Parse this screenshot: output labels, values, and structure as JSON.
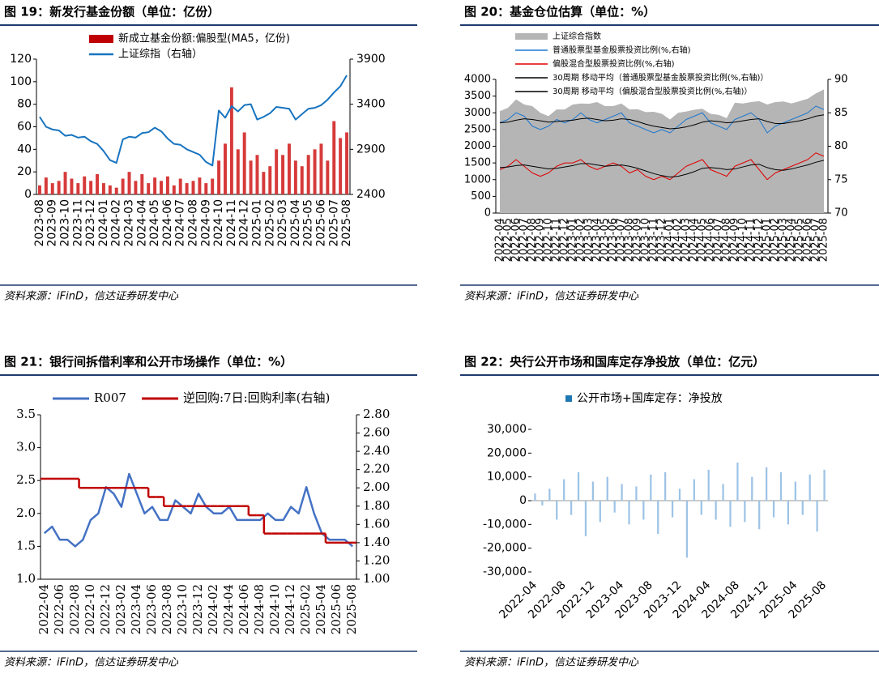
{
  "chart_data": [
    {
      "type": "combo",
      "title": "图 19：新发行基金份额（单位：亿份）",
      "source": "资料来源：iFinD，信达证券研发中心",
      "categories": [
        "2023-08",
        null,
        "2023-09",
        null,
        "2023-10",
        null,
        "2023-11",
        null,
        "2023-12",
        null,
        "2024-01",
        null,
        "2024-02",
        null,
        "2024-03",
        null,
        "2024-04",
        null,
        "2024-05",
        null,
        "2024-06",
        null,
        "2024-07",
        null,
        "2024-08",
        null,
        "2024-09",
        null,
        "2024-10",
        null,
        "2024-11",
        null,
        "2024-12",
        null,
        "2025-01",
        null,
        "2025-02",
        null,
        "2025-03",
        null,
        "2025-04",
        null,
        "2025-05",
        null,
        "2025-06",
        null,
        "2025-07",
        null,
        "2025-08"
      ],
      "series": [
        {
          "name": "新成立基金份额:偏股型(MA5，亿份)",
          "type": "bar",
          "color": "#d63a3a",
          "values": [
            8,
            15,
            10,
            12,
            20,
            14,
            10,
            16,
            12,
            18,
            10,
            8,
            6,
            14,
            20,
            12,
            18,
            10,
            15,
            12,
            16,
            8,
            14,
            10,
            12,
            15,
            10,
            14,
            30,
            45,
            95,
            40,
            55,
            30,
            35,
            20,
            25,
            40,
            35,
            45,
            30,
            25,
            35,
            40,
            45,
            30,
            65,
            50,
            55
          ]
        },
        {
          "name": "上证综指（右轴）",
          "type": "line",
          "color": "#1874c0",
          "axis": "y2",
          "values": [
            3260,
            3150,
            3120,
            3110,
            3050,
            3060,
            3030,
            3040,
            2990,
            2960,
            2880,
            2780,
            2750,
            3010,
            3040,
            3030,
            3080,
            3090,
            3140,
            3100,
            3020,
            2960,
            2950,
            2900,
            2870,
            2840,
            2760,
            2720,
            3330,
            3250,
            3380,
            3320,
            3390,
            3400,
            3230,
            3260,
            3300,
            3370,
            3360,
            3350,
            3230,
            3290,
            3350,
            3360,
            3390,
            3450,
            3530,
            3600,
            3720
          ]
        }
      ],
      "ylim": [
        0,
        120
      ],
      "yticks": [
        0,
        20,
        40,
        60,
        80,
        100,
        120
      ],
      "y2lim": [
        2400,
        3900
      ],
      "y2ticks": [
        2400,
        2900,
        3400,
        3900
      ]
    },
    {
      "type": "combo",
      "title": "图 20：基金仓位估算（单位：%）",
      "source": "资料来源：iFinD，信达证券研发中心",
      "categories": [
        "2022-04",
        "2022-05",
        "2022-06",
        "2022-07",
        "2022-08",
        "2022-09",
        "2022-10",
        "2022-11",
        "2022-12",
        "2023-01",
        "2023-02",
        "2023-03",
        "2023-04",
        "2023-05",
        "2023-06",
        "2023-07",
        "2023-08",
        "2023-09",
        "2023-10",
        "2023-11",
        "2023-12",
        "2024-01",
        "2024-02",
        "2024-03",
        "2024-04",
        "2024-05",
        "2024-06",
        "2024-07",
        "2024-08",
        "2024-09",
        "2024-10",
        "2024-11",
        "2024-12",
        "2025-01",
        "2025-02",
        "2025-03",
        "2025-04",
        "2025-05",
        "2025-06",
        "2025-07",
        "2025-08"
      ],
      "series": [
        {
          "name": "上证综合指数",
          "type": "area",
          "color": "#b5b5b5",
          "values": [
            3050,
            3150,
            3400,
            3250,
            3200,
            3000,
            2900,
            3100,
            3100,
            3250,
            3280,
            3270,
            3320,
            3200,
            3200,
            3280,
            3100,
            3110,
            3020,
            3030,
            2970,
            2800,
            3000,
            3040,
            3090,
            3120,
            2970,
            2940,
            2840,
            3300,
            3280,
            3320,
            3350,
            3250,
            3320,
            3340,
            3280,
            3350,
            3420,
            3580,
            3700
          ]
        },
        {
          "name": "普通股票型基金股票投资比例(%,右轴)",
          "type": "line",
          "color": "#1f78d0",
          "axis": "y2",
          "values": [
            83.5,
            84,
            85,
            84.5,
            83,
            82.5,
            83,
            84,
            83.5,
            84,
            85,
            84,
            83.5,
            84,
            84.5,
            85,
            83.5,
            83,
            82.5,
            82,
            82.5,
            82,
            83,
            84,
            84.5,
            85,
            83.5,
            83,
            82.5,
            84,
            84.5,
            85,
            84,
            82,
            83,
            83.5,
            84,
            84.5,
            85,
            86,
            85.5
          ]
        },
        {
          "name": "偏股混合型股票投资比例(%,右轴)",
          "type": "line",
          "color": "#e00000",
          "axis": "y2",
          "values": [
            76.5,
            77,
            78,
            77,
            76,
            75.5,
            76,
            77,
            77.5,
            77.5,
            78,
            77,
            76.5,
            77,
            77.5,
            77,
            76,
            76.5,
            75.5,
            75,
            75.5,
            75,
            76,
            77,
            77.5,
            78,
            76.5,
            76,
            75.5,
            77,
            77.5,
            78,
            76.5,
            75,
            76,
            76.5,
            77,
            77.5,
            78,
            79,
            78.5
          ]
        },
        {
          "name": "30周期 移动平均（普通股票型基金股票投资比例(%,右轴)）",
          "type": "line",
          "color": "#000000",
          "axis": "y2",
          "values": [
            83.5,
            83.6,
            83.9,
            84.1,
            84.0,
            83.8,
            83.6,
            83.7,
            83.8,
            83.9,
            84.1,
            84.2,
            84.0,
            83.8,
            83.9,
            84.1,
            84.0,
            83.7,
            83.3,
            83.0,
            82.8,
            82.6,
            82.7,
            82.9,
            83.2,
            83.6,
            83.8,
            83.7,
            83.5,
            83.6,
            83.8,
            84.0,
            84.1,
            83.7,
            83.4,
            83.4,
            83.6,
            83.8,
            84.1,
            84.5,
            84.7
          ]
        },
        {
          "name": "30周期 移动平均（偏股混合型股票投资比例(%,右轴)）",
          "type": "line",
          "color": "#000000",
          "axis": "y2",
          "values": [
            76.8,
            76.9,
            77.1,
            77.2,
            77.0,
            76.8,
            76.6,
            76.7,
            76.9,
            77.1,
            77.4,
            77.4,
            77.2,
            77.0,
            77.1,
            77.2,
            77.0,
            76.7,
            76.3,
            75.9,
            75.6,
            75.4,
            75.5,
            75.8,
            76.2,
            76.7,
            76.8,
            76.7,
            76.5,
            76.6,
            76.9,
            77.2,
            77.3,
            76.8,
            76.5,
            76.4,
            76.6,
            76.9,
            77.2,
            77.6,
            77.9
          ]
        }
      ],
      "ylim": [
        0,
        4000
      ],
      "yticks": [
        0,
        500,
        1000,
        1500,
        2000,
        2500,
        3000,
        3500,
        4000
      ],
      "y2lim": [
        70,
        90
      ],
      "y2ticks": [
        70,
        75,
        80,
        85,
        90
      ]
    },
    {
      "type": "line",
      "title": "图 21：银行间拆借利率和公开市场操作（单位：%）",
      "source": "资料来源：iFinD，信达证券研发中心",
      "categories": [
        "2022-04",
        null,
        "2022-06",
        null,
        "2022-08",
        null,
        "2022-10",
        null,
        "2022-12",
        null,
        "2023-02",
        null,
        "2023-04",
        null,
        "2023-06",
        null,
        "2023-08",
        null,
        "2023-10",
        null,
        "2023-12",
        null,
        "2024-02",
        null,
        "2024-04",
        null,
        "2024-06",
        null,
        "2024-08",
        null,
        "2024-10",
        null,
        "2024-12",
        null,
        "2025-02",
        null,
        "2025-04",
        null,
        "2025-06",
        null,
        "2025-08"
      ],
      "series": [
        {
          "name": "R007",
          "type": "line",
          "color": "#4472c4",
          "values": [
            1.7,
            1.8,
            1.6,
            1.6,
            1.5,
            1.6,
            1.9,
            2.0,
            2.4,
            2.3,
            2.1,
            2.6,
            2.3,
            2.0,
            2.1,
            1.9,
            1.9,
            2.2,
            2.1,
            2.0,
            2.3,
            2.1,
            2.0,
            2.0,
            2.1,
            1.9,
            1.9,
            1.9,
            1.9,
            2.0,
            1.9,
            1.9,
            2.1,
            2.0,
            2.4,
            2.0,
            1.7,
            1.6,
            1.6,
            1.6,
            1.5
          ]
        },
        {
          "name": "逆回购:7日:回购利率(右轴)",
          "type": "step",
          "color": "#c00000",
          "axis": "y2",
          "values": [
            2.1,
            2.1,
            2.1,
            2.1,
            2.1,
            2.0,
            2.0,
            2.0,
            2.0,
            2.0,
            2.0,
            2.0,
            2.0,
            2.0,
            1.9,
            1.9,
            1.8,
            1.8,
            1.8,
            1.8,
            1.8,
            1.8,
            1.8,
            1.8,
            1.8,
            1.8,
            1.8,
            1.7,
            1.7,
            1.5,
            1.5,
            1.5,
            1.5,
            1.5,
            1.5,
            1.5,
            1.5,
            1.4,
            1.4,
            1.4,
            1.4
          ]
        }
      ],
      "ylim": [
        1.0,
        3.5
      ],
      "yticks": [
        {
          "value": 1,
          "label": "1.0"
        },
        1.5,
        {
          "value": 2,
          "label": "2.0"
        },
        2.5,
        {
          "value": 3,
          "label": "3.0"
        },
        3.5
      ],
      "y2lim": [
        1.0,
        2.8
      ],
      "y2ticks": [
        {
          "value": 1,
          "label": "1.00"
        },
        {
          "value": 1.2,
          "label": "1.20"
        },
        {
          "value": 1.4,
          "label": "1.40"
        },
        {
          "value": 1.6,
          "label": "1.60"
        },
        {
          "value": 1.8,
          "label": "1.80"
        },
        {
          "value": 2,
          "label": "2.00"
        },
        {
          "value": 2.2,
          "label": "2.20"
        },
        {
          "value": 2.4,
          "label": "2.40"
        },
        {
          "value": 2.6,
          "label": "2.60"
        },
        {
          "value": 2.8,
          "label": "2.80"
        }
      ]
    },
    {
      "type": "bar",
      "title": "图 22：央行公开市场和国库定存净投放（单位：亿元）",
      "source": "资料来源：iFinD，信达证券研发中心",
      "categories": [
        "2022-04",
        null,
        null,
        null,
        "2022-08",
        null,
        null,
        null,
        "2022-12",
        null,
        null,
        null,
        "2023-04",
        null,
        null,
        null,
        "2023-08",
        null,
        null,
        null,
        "2023-12",
        null,
        null,
        null,
        "2024-04",
        null,
        null,
        null,
        "2024-08",
        null,
        null,
        null,
        "2024-12",
        null,
        null,
        null,
        "2025-04",
        null,
        null,
        null,
        "2025-08"
      ],
      "series": [
        {
          "name": "公开市场+国库定存：净投放",
          "type": "bar",
          "color": "#9dc3e6",
          "values": [
            3000,
            -2000,
            5000,
            -8000,
            9000,
            -6000,
            12000,
            -15000,
            8000,
            -9000,
            10000,
            -5000,
            7000,
            -10000,
            6000,
            -8000,
            11000,
            -14000,
            12000,
            -7000,
            5000,
            -24000,
            9000,
            -6000,
            13000,
            -8000,
            7000,
            -11000,
            16000,
            -9000,
            10000,
            -12000,
            14000,
            -7000,
            12000,
            -10000,
            8000,
            -6000,
            11000,
            -13000,
            13000
          ]
        }
      ],
      "ylim": [
        -30000,
        30000
      ],
      "yticks": [
        {
          "value": -30000,
          "label": "-30,000"
        },
        {
          "value": -20000,
          "label": "-20,000"
        },
        {
          "value": -10000,
          "label": "-10,000"
        },
        0,
        {
          "value": 10000,
          "label": "10,000"
        },
        {
          "value": 20000,
          "label": "20,000"
        },
        {
          "value": 30000,
          "label": "30,000"
        }
      ]
    }
  ]
}
